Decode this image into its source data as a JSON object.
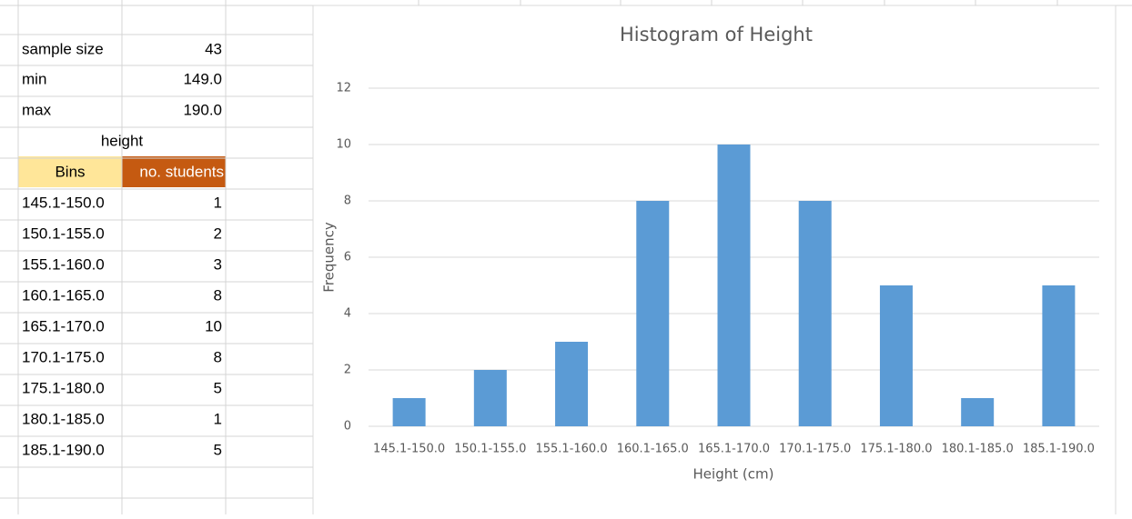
{
  "sheet": {
    "summary": [
      {
        "label": "sample size",
        "value": "43"
      },
      {
        "label": "min",
        "value": "149.0"
      },
      {
        "label": "max",
        "value": "190.0"
      }
    ],
    "group": "height",
    "headers": [
      "Bins",
      "no. students"
    ]
  },
  "chart_data": {
    "type": "bar",
    "title": "Histogram of Height",
    "x_label": "Height (cm)",
    "y_label": "Frequency",
    "categories": [
      "145.1-150.0",
      "150.1-155.0",
      "155.1-160.0",
      "160.1-165.0",
      "165.1-170.0",
      "170.1-175.0",
      "175.1-180.0",
      "180.1-185.0",
      "185.1-190.0"
    ],
    "values": [
      1,
      2,
      3,
      8,
      10,
      8,
      5,
      1,
      5
    ],
    "color": "#5b9bd5",
    "ylim": [
      0,
      12
    ],
    "yticks": [
      0,
      2,
      4,
      6,
      8,
      10,
      12
    ],
    "grid": true
  }
}
